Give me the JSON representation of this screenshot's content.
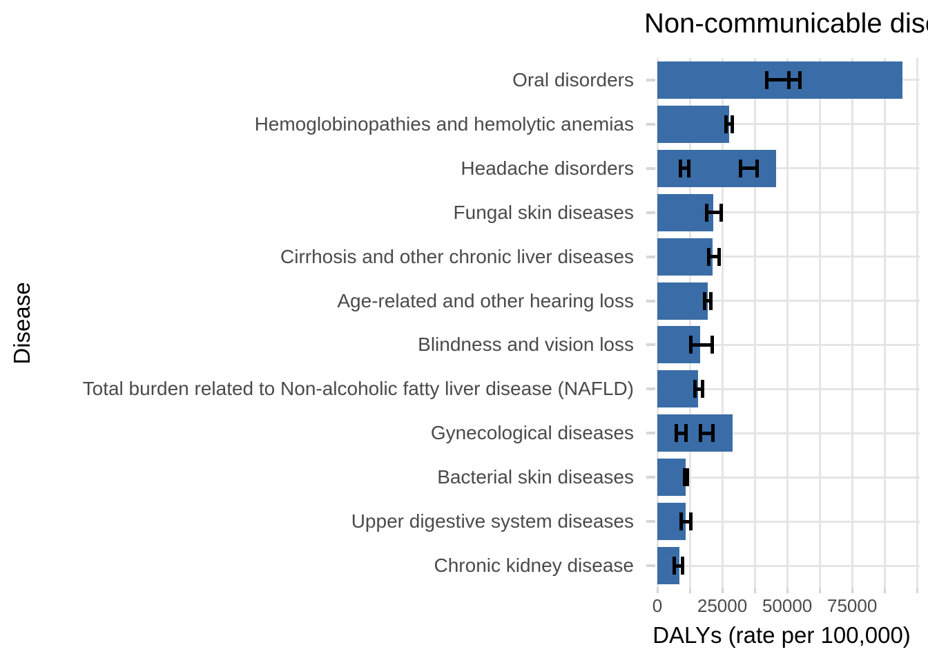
{
  "chart_data": {
    "type": "bar",
    "orientation": "horizontal",
    "title": "Non-communicable diseases",
    "title_visible_portion": "Non-communicable d",
    "xlabel": "DALYs (rate per 100,000)",
    "ylabel": "Disease",
    "x_tick_labels": [
      "0",
      "25000",
      "50000",
      "75000"
    ],
    "x_tick_values": [
      0,
      25000,
      50000,
      75000
    ],
    "x_minor_step": 12500,
    "grid_max": 100000,
    "xlim": [
      0,
      101000
    ],
    "grid": "on",
    "legend_position": "none",
    "categories": [
      "Oral disorders",
      "Hemoglobinopathies and hemolytic anemias",
      "Headache disorders",
      "Fungal skin diseases",
      "Cirrhosis and other chronic liver diseases",
      "Age-related and other hearing loss",
      "Blindness and vision loss",
      "Total burden related to Non-alcoholic fatty liver disease (NAFLD)",
      "Gynecological diseases",
      "Bacterial skin diseases",
      "Upper digestive system diseases",
      "Chronic kidney disease"
    ],
    "values": [
      94400,
      27700,
      45700,
      21500,
      21300,
      19400,
      16500,
      15700,
      29000,
      10900,
      10900,
      8500
    ],
    "error_bars": [
      [
        [
          42000,
          50500
        ],
        [
          50500,
          54800
        ]
      ],
      [
        [
          26500,
          28800
        ]
      ],
      [
        [
          9000,
          12000
        ],
        [
          31900,
          38300
        ]
      ],
      [
        [
          19100,
          24500
        ]
      ],
      [
        [
          19700,
          23900
        ]
      ],
      [
        [
          18100,
          20700
        ]
      ],
      [
        [
          12800,
          21000
        ]
      ],
      [
        [
          14400,
          17300
        ]
      ],
      [
        [
          7400,
          10900
        ],
        [
          16700,
          21500
        ]
      ],
      [
        [
          10400,
          11500
        ]
      ],
      [
        [
          9300,
          12800
        ]
      ],
      [
        [
          6600,
          9600
        ]
      ]
    ],
    "colors": {
      "bar": "#3a6da7",
      "error_bar": "#000000",
      "gridline": "#e5e5e5",
      "tick_mark": "#d6d6d6",
      "axis_text": "#4a4a4a",
      "title_text": "#000000",
      "background": "#ffffff"
    }
  }
}
